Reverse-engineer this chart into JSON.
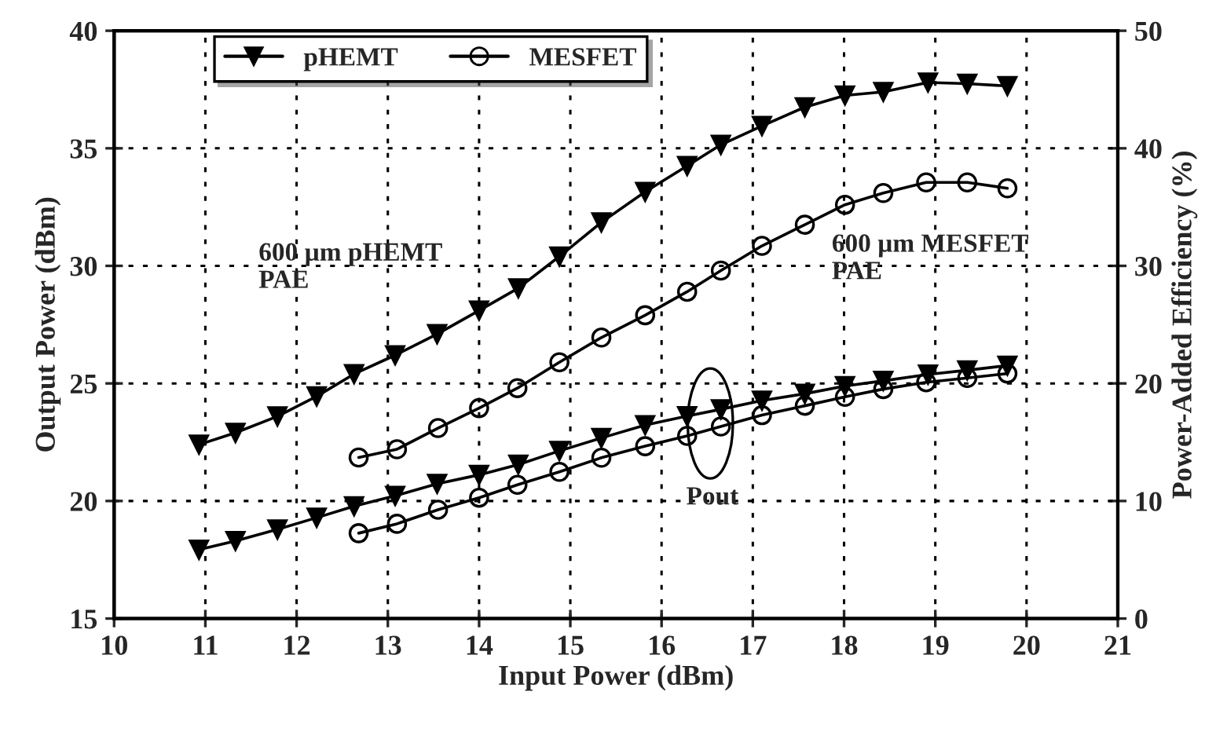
{
  "chart_data": {
    "type": "line",
    "xlabel": "Input Power (dBm)",
    "ylabel": "Output Power (dBm)",
    "y2label": "Power-Added Efficiency (%)",
    "xlim": [
      10,
      21
    ],
    "xticks": [
      10,
      11,
      12,
      13,
      14,
      15,
      16,
      17,
      18,
      19,
      20,
      21
    ],
    "ylim": [
      15,
      40
    ],
    "yticks": [
      15,
      20,
      25,
      30,
      35,
      40
    ],
    "y2lim": [
      0,
      50
    ],
    "y2ticks": [
      0,
      10,
      20,
      30,
      40,
      50
    ],
    "grid": true,
    "legend": "top left",
    "line_style": "solid",
    "annotations": [
      "600 µm pHEMT\nPAE",
      "600 µm MESFET\nPAE",
      "Pout"
    ],
    "series": [
      {
        "name": "pHEMT",
        "color": "#000000",
        "marker": "triangle",
        "axis": "y2",
        "x": [
          10.93,
          11.33,
          11.79,
          12.22,
          12.63,
          13.08,
          13.54,
          14.0,
          14.43,
          14.88,
          15.34,
          15.82,
          16.28,
          16.65,
          17.1,
          17.57,
          18.01,
          18.43,
          18.92,
          19.35,
          19.79
        ],
        "values": [
          14.8,
          15.8,
          17.2,
          18.9,
          20.8,
          22.4,
          24.2,
          26.2,
          28.1,
          30.8,
          33.7,
          36.3,
          38.5,
          40.3,
          41.9,
          43.5,
          44.5,
          44.8,
          45.6,
          45.5,
          45.3
        ]
      },
      {
        "name": "MESFET",
        "color": "#000000",
        "marker": "circle",
        "axis": "y2",
        "x": [
          12.68,
          13.1,
          13.55,
          14.0,
          14.42,
          14.88,
          15.34,
          15.82,
          16.28,
          16.65,
          17.1,
          17.57,
          18.01,
          18.43,
          18.9,
          19.35,
          19.79
        ],
        "values": [
          13.7,
          14.4,
          16.2,
          17.9,
          19.6,
          21.8,
          23.9,
          25.8,
          27.8,
          29.6,
          31.7,
          33.5,
          35.2,
          36.2,
          37.1,
          37.1,
          36.6
        ]
      },
      {
        "color": "#000000",
        "marker": "triangle",
        "x": [
          10.93,
          11.33,
          11.79,
          12.22,
          12.63,
          13.08,
          13.54,
          14.0,
          14.43,
          14.88,
          15.34,
          15.82,
          16.28,
          16.65,
          17.1,
          17.57,
          18.01,
          18.43,
          18.92,
          19.35,
          19.79
        ],
        "values": [
          17.93,
          18.3,
          18.79,
          19.29,
          19.78,
          20.22,
          20.73,
          21.11,
          21.55,
          22.13,
          22.68,
          23.23,
          23.61,
          23.9,
          24.27,
          24.56,
          24.89,
          25.11,
          25.38,
          25.56,
          25.76
        ]
      },
      {
        "color": "#000000",
        "marker": "circle",
        "x": [
          12.68,
          13.1,
          13.55,
          14.0,
          14.42,
          14.88,
          15.34,
          15.82,
          16.28,
          16.65,
          17.1,
          17.57,
          18.01,
          18.43,
          18.9,
          19.35,
          19.79
        ],
        "values": [
          18.63,
          19.03,
          19.63,
          20.14,
          20.69,
          21.24,
          21.84,
          22.33,
          22.77,
          23.17,
          23.65,
          24.05,
          24.43,
          24.76,
          25.05,
          25.23,
          25.42
        ]
      }
    ]
  }
}
